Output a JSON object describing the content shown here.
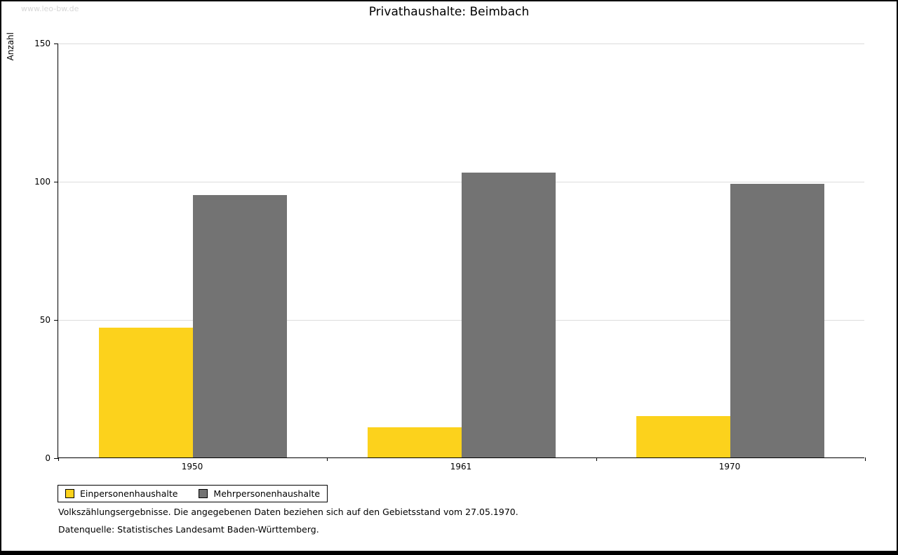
{
  "watermark": "www.leo-bw.de",
  "chart_data": {
    "type": "bar",
    "title": "Privathaushalte: Beimbach",
    "xlabel": "",
    "ylabel": "Anzahl",
    "categories": [
      "1950",
      "1961",
      "1970"
    ],
    "series": [
      {
        "name": "Einpersonenhaushalte",
        "color": "#FCD21C",
        "values": [
          47,
          11,
          15
        ]
      },
      {
        "name": "Mehrpersonenhaushalte",
        "color": "#737373",
        "values": [
          95,
          103,
          99
        ]
      }
    ],
    "ylim": [
      0,
      150
    ],
    "yticks": [
      0,
      50,
      100,
      150
    ],
    "grid": true,
    "legend_position": "bottom-left"
  },
  "footer": {
    "line1": "Volkszählungsergebnisse. Die angegebenen Daten beziehen sich auf den Gebietsstand vom 27.05.1970.",
    "line2": "Datenquelle: Statistisches Landesamt Baden-Württemberg."
  }
}
